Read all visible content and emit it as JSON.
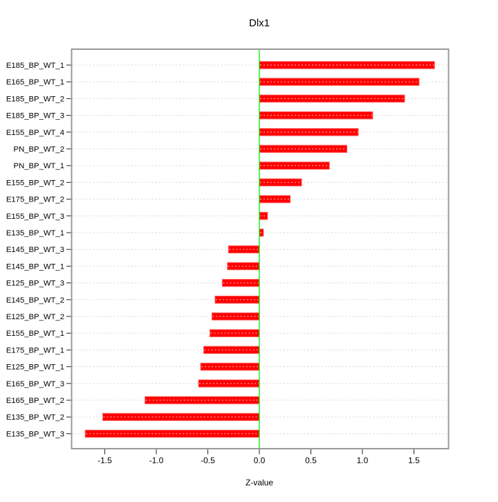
{
  "chart_data": {
    "type": "bar",
    "orientation": "horizontal",
    "title": "Dlx1",
    "xlabel": "Z-value",
    "ylabel": "",
    "categories": [
      "E185_BP_WT_1",
      "E165_BP_WT_1",
      "E185_BP_WT_2",
      "E185_BP_WT_3",
      "E155_BP_WT_4",
      "PN_BP_WT_2",
      "PN_BP_WT_1",
      "E155_BP_WT_2",
      "E175_BP_WT_2",
      "E155_BP_WT_3",
      "E135_BP_WT_1",
      "E145_BP_WT_3",
      "E145_BP_WT_1",
      "E125_BP_WT_3",
      "E145_BP_WT_2",
      "E125_BP_WT_2",
      "E155_BP_WT_1",
      "E175_BP_WT_1",
      "E125_BP_WT_1",
      "E165_BP_WT_3",
      "E165_BP_WT_2",
      "E135_BP_WT_2",
      "E135_BP_WT_3"
    ],
    "values": [
      1.7,
      1.55,
      1.41,
      1.1,
      0.96,
      0.85,
      0.68,
      0.41,
      0.3,
      0.08,
      0.04,
      -0.3,
      -0.31,
      -0.36,
      -0.43,
      -0.46,
      -0.48,
      -0.54,
      -0.57,
      -0.59,
      -1.11,
      -1.52,
      -1.69
    ],
    "xlim": [
      -1.822,
      1.836
    ],
    "x_ticks": [
      -1.5,
      -1.0,
      -0.5,
      0.0,
      0.5,
      1.0,
      1.5
    ],
    "x_tick_labels": [
      "-1.5",
      "-1.0",
      "-0.5",
      "0.0",
      "0.5",
      "1.0",
      "1.5"
    ],
    "zero_reference_line": 0.0,
    "grid": "dashed horizontal line per category",
    "legend": "none",
    "colors": {
      "bar": "#ff0000",
      "bar_edge": "#ff6666",
      "bar_inner_dash": "rgba(255,255,255,0.55)",
      "zero_line": "#00ee00",
      "grid": "#d5d5d5",
      "box": "#999999",
      "tick": "#222222",
      "text": "#000000",
      "background": "#ffffff"
    }
  }
}
